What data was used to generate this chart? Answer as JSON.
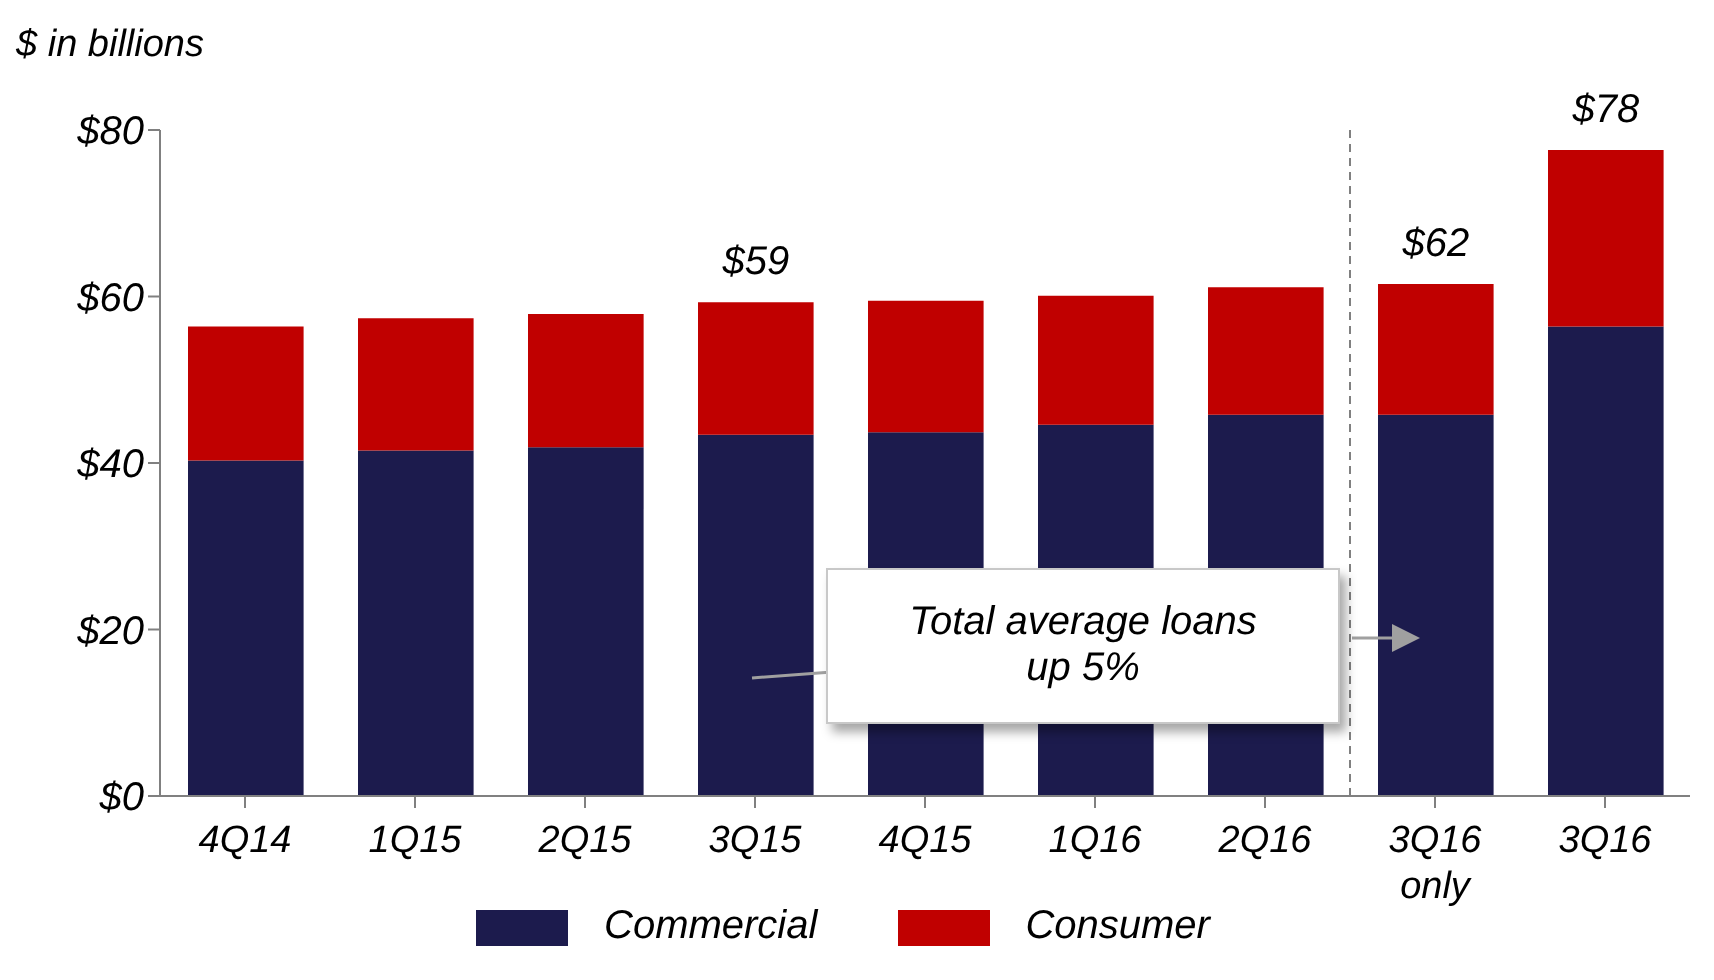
{
  "chart_data": {
    "type": "bar",
    "stacked": true,
    "ylabel": "$ in billions",
    "categories": [
      "4Q14",
      "1Q15",
      "2Q15",
      "3Q15",
      "4Q15",
      "1Q16",
      "2Q16",
      "3Q16 only",
      "3Q16"
    ],
    "series": [
      {
        "name": "Commercial",
        "color": "#1c1b4d",
        "values": [
          40.3,
          41.5,
          41.9,
          43.4,
          43.7,
          44.6,
          45.8,
          45.8,
          56.4
        ]
      },
      {
        "name": "Consumer",
        "color": "#c00000",
        "values": [
          16.1,
          15.9,
          16.0,
          15.9,
          15.8,
          15.5,
          15.3,
          15.7,
          21.2
        ]
      }
    ],
    "totals": [
      null,
      null,
      null,
      "$59",
      null,
      null,
      null,
      "$62",
      "$78"
    ],
    "ylim": [
      0,
      80
    ],
    "yticks": [
      {
        "value": 0,
        "label": "$0"
      },
      {
        "value": 20,
        "label": "$20"
      },
      {
        "value": 40,
        "label": "$40"
      },
      {
        "value": 60,
        "label": "$60"
      },
      {
        "value": 80,
        "label": "$80"
      }
    ],
    "annotations": [
      "Total average loans up 5%"
    ],
    "grid": false,
    "legend": "bottom"
  }
}
